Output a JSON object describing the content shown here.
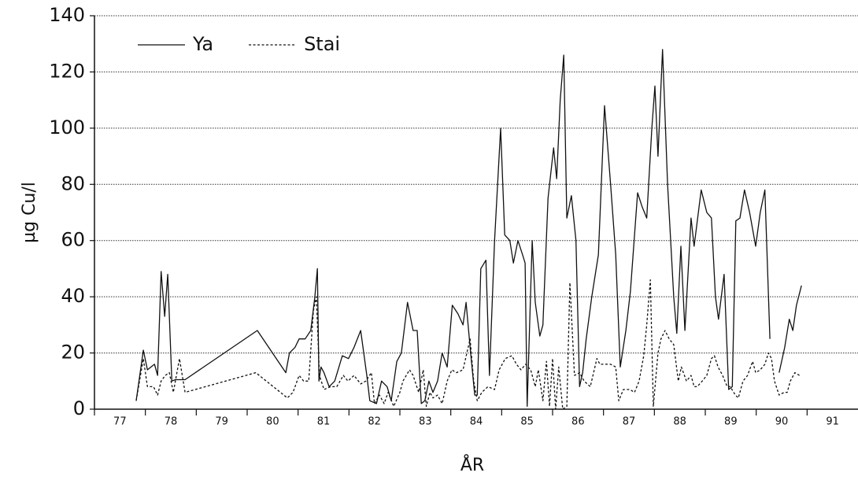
{
  "chart_data": {
    "type": "line",
    "x_label": "ÅR",
    "y_label": "µg Cu/l",
    "xlim": [
      77,
      92
    ],
    "ylim": [
      0,
      140
    ],
    "yticks": [
      0,
      20,
      40,
      60,
      80,
      100,
      120,
      140
    ],
    "xticks": [
      {
        "value": 77.5,
        "label": "77"
      },
      {
        "value": 78.5,
        "label": "78"
      },
      {
        "value": 79.5,
        "label": "79"
      },
      {
        "value": 80.5,
        "label": "80"
      },
      {
        "value": 81.5,
        "label": "81"
      },
      {
        "value": 82.5,
        "label": "82"
      },
      {
        "value": 83.5,
        "label": "83"
      },
      {
        "value": 84.5,
        "label": "84"
      },
      {
        "value": 85.5,
        "label": "85"
      },
      {
        "value": 86.5,
        "label": "86"
      },
      {
        "value": 87.5,
        "label": "87"
      },
      {
        "value": 88.5,
        "label": "88"
      },
      {
        "value": 89.5,
        "label": "89"
      },
      {
        "value": 90.5,
        "label": "90"
      },
      {
        "value": 91.5,
        "label": "91"
      }
    ],
    "grid": true,
    "legend": "upper left",
    "series": [
      {
        "name": "Ya",
        "color": "#111111",
        "dash": "solid",
        "x": [
          77.82,
          77.96,
          78.04,
          78.11,
          78.18,
          78.24,
          78.31,
          78.38,
          78.44,
          78.52,
          78.59,
          78.78,
          80.2,
          80.76,
          80.83,
          80.94,
          81.02,
          81.14,
          81.25,
          81.33,
          81.38,
          81.41,
          81.45,
          81.51,
          81.61,
          81.72,
          81.87,
          81.99,
          82.1,
          82.23,
          82.35,
          82.41,
          82.54,
          82.64,
          82.75,
          82.83,
          82.94,
          83.03,
          83.15,
          83.26,
          83.34,
          83.42,
          83.49,
          83.57,
          83.65,
          83.74,
          83.83,
          83.93,
          84.03,
          84.14,
          84.24,
          84.3,
          84.39,
          84.47,
          84.52,
          84.59,
          84.69,
          84.76,
          84.86,
          84.98,
          85.06,
          85.16,
          85.23,
          85.32,
          85.41,
          85.46,
          85.5,
          85.6,
          85.66,
          85.75,
          85.81,
          85.91,
          86.02,
          86.08,
          86.15,
          86.22,
          86.28,
          86.37,
          86.46,
          86.53,
          86.59,
          86.66,
          86.77,
          86.9,
          87.02,
          87.14,
          87.24,
          87.33,
          87.44,
          87.53,
          87.67,
          87.76,
          87.85,
          87.95,
          88.01,
          88.07,
          88.16,
          88.26,
          88.38,
          88.44,
          88.52,
          88.6,
          88.72,
          88.78,
          88.92,
          89.03,
          89.12,
          89.2,
          89.26,
          89.37,
          89.46,
          89.53,
          89.6,
          89.68,
          89.77,
          89.87,
          89.99,
          90.08,
          90.17,
          90.27,
          90.36,
          90.45,
          90.56,
          90.65,
          90.72,
          90.79,
          90.89
        ],
        "values": [
          3,
          21,
          14,
          15,
          16,
          12,
          49,
          33,
          48,
          10,
          10.5,
          10.5,
          28,
          13,
          20,
          22,
          25,
          25,
          28,
          40,
          50,
          10,
          15,
          13,
          8,
          10,
          19,
          18,
          22,
          28,
          12,
          3,
          2,
          10,
          8,
          3,
          17,
          20,
          38,
          28,
          28,
          2,
          3,
          10,
          6,
          10,
          20,
          15,
          37,
          34,
          30,
          38,
          20,
          5,
          5,
          50,
          53,
          12,
          60,
          100,
          62,
          60,
          52,
          60,
          55,
          52,
          1,
          60,
          38,
          26,
          30,
          75,
          93,
          82,
          110,
          126,
          68,
          76,
          60,
          8,
          13,
          25,
          40,
          55,
          108,
          80,
          55,
          15,
          28,
          42,
          77,
          72,
          68,
          100,
          115,
          90,
          128,
          80,
          40,
          27,
          58,
          28,
          68,
          58,
          78,
          70,
          68,
          40,
          32,
          48,
          7,
          8,
          67,
          68,
          78,
          70,
          58,
          70,
          78,
          25,
          null,
          13,
          22,
          32,
          28,
          37,
          44
        ]
      },
      {
        "name": "Stai",
        "color": "#111111",
        "dash": "dashed",
        "x": [
          77.82,
          77.96,
          78.04,
          78.16,
          78.24,
          78.31,
          78.39,
          78.47,
          78.55,
          78.67,
          78.78,
          80.17,
          80.79,
          80.9,
          81.02,
          81.11,
          81.21,
          81.3,
          81.36,
          81.42,
          81.51,
          81.64,
          81.76,
          81.89,
          81.98,
          82.1,
          82.23,
          82.33,
          82.44,
          82.5,
          82.6,
          82.69,
          82.77,
          82.88,
          83.0,
          83.06,
          83.19,
          83.26,
          83.37,
          83.46,
          83.52,
          83.59,
          83.65,
          83.74,
          83.83,
          83.93,
          84.02,
          84.11,
          84.24,
          84.38,
          84.45,
          84.52,
          84.61,
          84.73,
          84.86,
          84.95,
          85.07,
          85.2,
          85.29,
          85.38,
          85.47,
          85.57,
          85.66,
          85.72,
          85.81,
          85.88,
          85.94,
          86.0,
          86.06,
          86.12,
          86.2,
          86.28,
          86.34,
          86.43,
          86.53,
          86.62,
          86.74,
          86.87,
          86.93,
          87.02,
          87.14,
          87.24,
          87.3,
          87.39,
          87.52,
          87.61,
          87.7,
          87.79,
          87.85,
          87.92,
          87.98,
          88.07,
          88.13,
          88.21,
          88.29,
          88.38,
          88.47,
          88.53,
          88.63,
          88.72,
          88.78,
          88.84,
          88.94,
          89.03,
          89.12,
          89.18,
          89.25,
          89.34,
          89.43,
          89.49,
          89.59,
          89.65,
          89.74,
          89.83,
          89.93,
          89.99,
          90.08,
          90.17,
          90.24,
          90.3,
          90.36,
          90.45,
          90.55,
          90.61,
          90.67,
          90.76,
          90.85
        ],
        "values": [
          3,
          18,
          8,
          8,
          5,
          10,
          12,
          13,
          6,
          18,
          6,
          13,
          4,
          6,
          12,
          10,
          10,
          35,
          40,
          12,
          7,
          8,
          8,
          12,
          10,
          12,
          9,
          10,
          13,
          2,
          5,
          2,
          6,
          1,
          6,
          10,
          14,
          12,
          6,
          14,
          1,
          6,
          4,
          5,
          2,
          10,
          14,
          13,
          14,
          25,
          10,
          3,
          6,
          8,
          7,
          14,
          18,
          19,
          16,
          14,
          16,
          14,
          8,
          14,
          3,
          17,
          1,
          18,
          0,
          15,
          0,
          1,
          45,
          12,
          13,
          10,
          8,
          18,
          16,
          16,
          16,
          15,
          3,
          7,
          7,
          6,
          10,
          19,
          30,
          46,
          1,
          20,
          25,
          28,
          25,
          23,
          10,
          15,
          10,
          12,
          8,
          8,
          10,
          12,
          18,
          19,
          15,
          12,
          8,
          8,
          5,
          4,
          10,
          12,
          17,
          13,
          14,
          16,
          20,
          18,
          10,
          5,
          6,
          6,
          10,
          13,
          12
        ]
      }
    ]
  }
}
